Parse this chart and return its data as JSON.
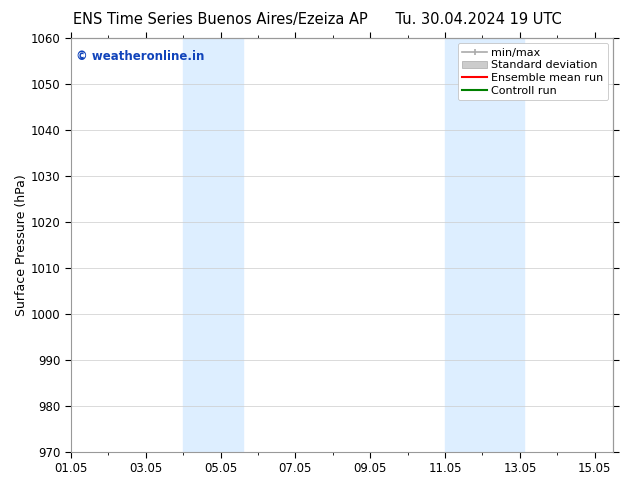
{
  "title_left": "ENS Time Series Buenos Aires/Ezeiza AP",
  "title_right": "Tu. 30.04.2024 19 UTC",
  "ylabel": "Surface Pressure (hPa)",
  "ylim": [
    970,
    1060
  ],
  "yticks": [
    970,
    980,
    990,
    1000,
    1010,
    1020,
    1030,
    1040,
    1050,
    1060
  ],
  "xlim_start": 1.0,
  "xlim_end": 15.5,
  "xticks": [
    1,
    3,
    5,
    7,
    9,
    11,
    13,
    15
  ],
  "xticklabels": [
    "01.05",
    "03.05",
    "05.05",
    "07.05",
    "09.05",
    "11.05",
    "13.05",
    "15.05"
  ],
  "shaded_bands": [
    {
      "x_start": 4.0,
      "x_end": 5.6,
      "color": "#ddeeff"
    },
    {
      "x_start": 11.0,
      "x_end": 13.1,
      "color": "#ddeeff"
    }
  ],
  "watermark_text": "© weatheronline.in",
  "watermark_color": "#1144bb",
  "legend_items": [
    {
      "label": "min/max"
    },
    {
      "label": "Standard deviation"
    },
    {
      "label": "Ensemble mean run",
      "color": "red"
    },
    {
      "label": "Controll run",
      "color": "green"
    }
  ],
  "bg_color": "#ffffff",
  "grid_color": "#cccccc",
  "font_size_title": 10.5,
  "font_size_labels": 9,
  "font_size_ticks": 8.5,
  "font_size_legend": 8,
  "font_size_watermark": 8.5
}
